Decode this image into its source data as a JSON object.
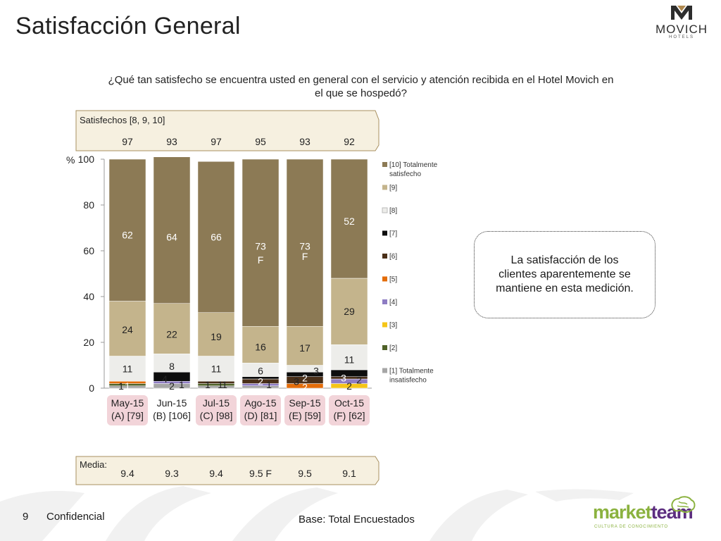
{
  "page": {
    "title": "Satisfacción General",
    "question": "¿Qué tan satisfecho se encuentra usted en general con el servicio y atención recibida en el Hotel Movich en el que se hospedó?",
    "callout": "La satisfacción de los clientes aparentemente se mantiene en esta medición.",
    "page_number": "9",
    "confidential": "Confidencial",
    "base": "Base: Total Encuestados",
    "logo_top": {
      "word": "MOVICH",
      "sub": "HOTELS"
    },
    "logo_bottom": {
      "word_a": "market",
      "word_b": "team",
      "tagline": "CULTURA DE CONOCIMIENTO"
    }
  },
  "chart_data": {
    "type": "bar",
    "stacked": true,
    "ylabel": "%",
    "ylim": [
      0,
      100
    ],
    "yticks": [
      0,
      20,
      40,
      60,
      80,
      100
    ],
    "categories": [
      "May-15",
      "Jun-15",
      "Jul-15",
      "Ago-15",
      "Sep-15",
      "Oct-15"
    ],
    "category_sublabels": [
      "(A) [79]",
      "(B) [106]",
      "(C) [98]",
      "(D) [81]",
      "(E) [59]",
      "(F) [62]"
    ],
    "highlighted_categories": [
      0,
      2,
      3,
      4,
      5
    ],
    "series": [
      {
        "name": "[1] Totalmente insatisfecho",
        "color": "#a6a6a6",
        "values": [
          1,
          2,
          1,
          1,
          0,
          0
        ]
      },
      {
        "name": "[2]",
        "color": "#4f6228",
        "values": [
          1,
          0,
          1,
          0,
          0,
          0
        ]
      },
      {
        "name": "[3]",
        "color": "#f5c518",
        "values": [
          0,
          0,
          0,
          0,
          0,
          2
        ]
      },
      {
        "name": "[4]",
        "color": "#8e7cc3",
        "values": [
          0,
          1,
          0,
          1,
          0,
          2
        ]
      },
      {
        "name": "[5]",
        "color": "#e36c09",
        "values": [
          1,
          0,
          0,
          0,
          2,
          0
        ]
      },
      {
        "name": "[6]",
        "color": "#4a2f18",
        "values": [
          0,
          0,
          1,
          2,
          3,
          1
        ]
      },
      {
        "name": "[7]",
        "color": "#0d0d0d",
        "values": [
          0,
          4,
          0,
          1,
          2,
          3
        ]
      },
      {
        "name": "[8]",
        "color": "#ededea",
        "values": [
          11,
          8,
          11,
          6,
          3,
          11
        ]
      },
      {
        "name": "[9]",
        "color": "#c4b48c",
        "values": [
          24,
          22,
          19,
          16,
          17,
          29
        ]
      },
      {
        "name": "[10] Totalmente satisfecho",
        "color": "#8c7a55",
        "values": [
          62,
          64,
          66,
          73,
          73,
          52
        ]
      }
    ],
    "data_labels": [
      {
        "col": 0,
        "y": 1,
        "text": "1",
        "color": "#ffffff"
      },
      {
        "col": 0,
        "y": 1,
        "text": "1",
        "color": "#222",
        "dx": -9
      },
      {
        "col": 0,
        "y": 8.5,
        "text": "11",
        "color": "#222"
      },
      {
        "col": 0,
        "y": 25.5,
        "text": "24",
        "color": "#222"
      },
      {
        "col": 0,
        "y": 67,
        "text": "62",
        "color": "#ffffff"
      },
      {
        "col": 1,
        "y": 1,
        "text": "2",
        "color": "#222"
      },
      {
        "col": 1,
        "y": 1.5,
        "text": "1",
        "color": "#222",
        "dx": 14
      },
      {
        "col": 1,
        "y": 4,
        "text": "4",
        "color": "#222",
        "dx": -10
      },
      {
        "col": 1,
        "y": 9.5,
        "text": "8",
        "color": "#222"
      },
      {
        "col": 1,
        "y": 23.5,
        "text": "22",
        "color": "#222"
      },
      {
        "col": 1,
        "y": 66,
        "text": "64",
        "color": "#ffffff"
      },
      {
        "col": 2,
        "y": 1.5,
        "text": "1",
        "color": "#222",
        "dx": -12
      },
      {
        "col": 2,
        "y": 1.5,
        "text": "1",
        "color": "#222",
        "dx": 6
      },
      {
        "col": 2,
        "y": 1.5,
        "text": "1",
        "color": "#222",
        "dx": 12
      },
      {
        "col": 2,
        "y": 8.5,
        "text": "11",
        "color": "#222"
      },
      {
        "col": 2,
        "y": 22.5,
        "text": "19",
        "color": "#222"
      },
      {
        "col": 2,
        "y": 66,
        "text": "66",
        "color": "#ffffff"
      },
      {
        "col": 3,
        "y": 1.5,
        "text": "1",
        "color": "#222",
        "dx": 12
      },
      {
        "col": 3,
        "y": 3,
        "text": "2",
        "color": "#ffffff"
      },
      {
        "col": 3,
        "y": 7.5,
        "text": "6",
        "color": "#222"
      },
      {
        "col": 3,
        "y": 18,
        "text": "16",
        "color": "#222"
      },
      {
        "col": 3,
        "y": 62,
        "text": "73",
        "color": "#ffffff"
      },
      {
        "col": 3,
        "y": 56,
        "text": "F",
        "color": "#ffffff"
      },
      {
        "col": 4,
        "y": 0.5,
        "text": "2",
        "color": "#ffffff"
      },
      {
        "col": 4,
        "y": 3,
        "text": "3",
        "color": "#222",
        "dx": -12
      },
      {
        "col": 4,
        "y": 4.5,
        "text": "2",
        "color": "#ffffff"
      },
      {
        "col": 4,
        "y": 7.5,
        "text": "3",
        "color": "#222",
        "dx": 16
      },
      {
        "col": 4,
        "y": 17.5,
        "text": "17",
        "color": "#222"
      },
      {
        "col": 4,
        "y": 62,
        "text": "73",
        "color": "#ffffff"
      },
      {
        "col": 4,
        "y": 57.5,
        "text": "F",
        "color": "#ffffff"
      },
      {
        "col": 5,
        "y": 1,
        "text": "2",
        "color": "#222"
      },
      {
        "col": 5,
        "y": 3.5,
        "text": "2",
        "color": "#222",
        "dx": 14
      },
      {
        "col": 5,
        "y": 4.5,
        "text": "3",
        "color": "#ffffff",
        "dx": -8
      },
      {
        "col": 5,
        "y": 12.5,
        "text": "11",
        "color": "#222"
      },
      {
        "col": 5,
        "y": 33.5,
        "text": "29",
        "color": "#222"
      },
      {
        "col": 5,
        "y": 73,
        "text": "52",
        "color": "#ffffff"
      }
    ],
    "satisfechos": {
      "label": "Satisfechos [8, 9, 10]",
      "values": [
        "97",
        "93",
        "97",
        "95",
        "93",
        "92"
      ]
    },
    "media": {
      "label": "Media:",
      "values": [
        "9.4",
        "9.3",
        "9.4",
        "9.5 F",
        "9.5",
        "9.1"
      ]
    },
    "legend_position": "right"
  }
}
